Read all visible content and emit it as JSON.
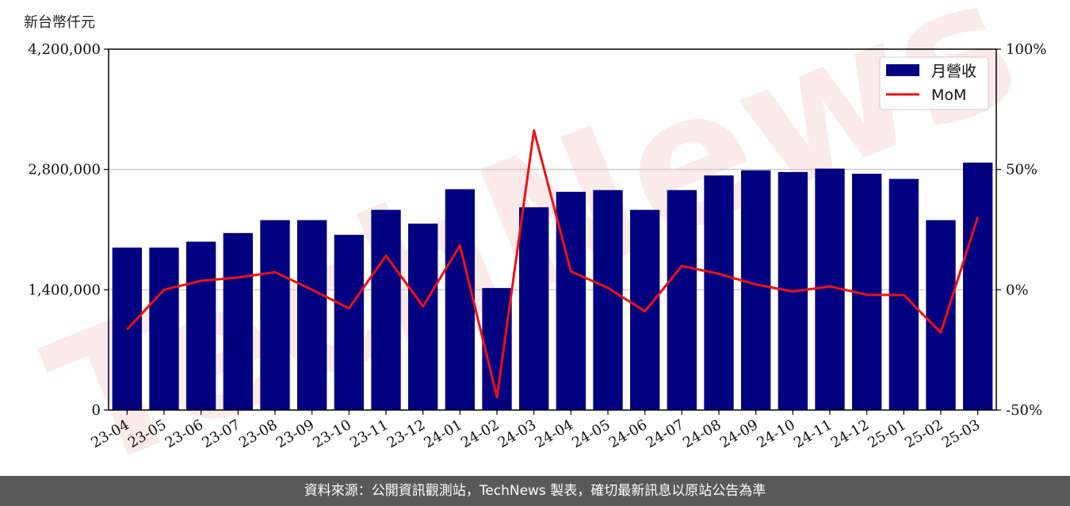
{
  "unit_label": "新台幣仟元",
  "footer_text": "資料來源：公開資訊觀測站，TechNews 製表，確切最新訊息以原站公告為準",
  "watermark": "TechNews",
  "colors": {
    "bar": "#000080",
    "line": "#ee1111",
    "grid": "#cccccc",
    "footer_bg": "#595959"
  },
  "chart_data": {
    "type": "bar",
    "categories": [
      "23-04",
      "23-05",
      "23-06",
      "23-07",
      "23-08",
      "23-09",
      "23-10",
      "23-11",
      "23-12",
      "24-01",
      "24-02",
      "24-03",
      "24-04",
      "24-05",
      "24-06",
      "24-07",
      "24-08",
      "24-09",
      "24-10",
      "24-11",
      "24-12",
      "25-01",
      "25-02",
      "25-03"
    ],
    "series": [
      {
        "name": "月營收",
        "axis": "left",
        "type": "bar",
        "values": [
          1890000,
          1890000,
          1960000,
          2060000,
          2210000,
          2210000,
          2040000,
          2330000,
          2170000,
          2570000,
          1420000,
          2360000,
          2540000,
          2560000,
          2330000,
          2560000,
          2730000,
          2790000,
          2770000,
          2810000,
          2750000,
          2690000,
          2210000,
          2880000
        ]
      },
      {
        "name": "MoM",
        "axis": "right",
        "type": "line",
        "values": [
          -16.5,
          0.0,
          3.7,
          5.1,
          7.3,
          0.0,
          -7.7,
          14.2,
          -6.9,
          18.4,
          -44.7,
          66.2,
          7.6,
          0.8,
          -9.0,
          9.9,
          6.6,
          2.2,
          -0.7,
          1.4,
          -2.1,
          -2.2,
          -17.8,
          30.3
        ]
      }
    ],
    "y_left": {
      "ticks": [
        0,
        1400000,
        2800000,
        4200000
      ],
      "tick_labels": [
        "0",
        "1,400,000",
        "2,800,000",
        "4,200,000"
      ],
      "range": [
        0,
        4200000
      ]
    },
    "y_right": {
      "ticks": [
        -50,
        0,
        50,
        100
      ],
      "tick_labels": [
        "-50%",
        "0%",
        "50%",
        "100%"
      ],
      "range": [
        -50,
        100
      ]
    },
    "grid": "horizontal",
    "legend_position": "top-right"
  }
}
